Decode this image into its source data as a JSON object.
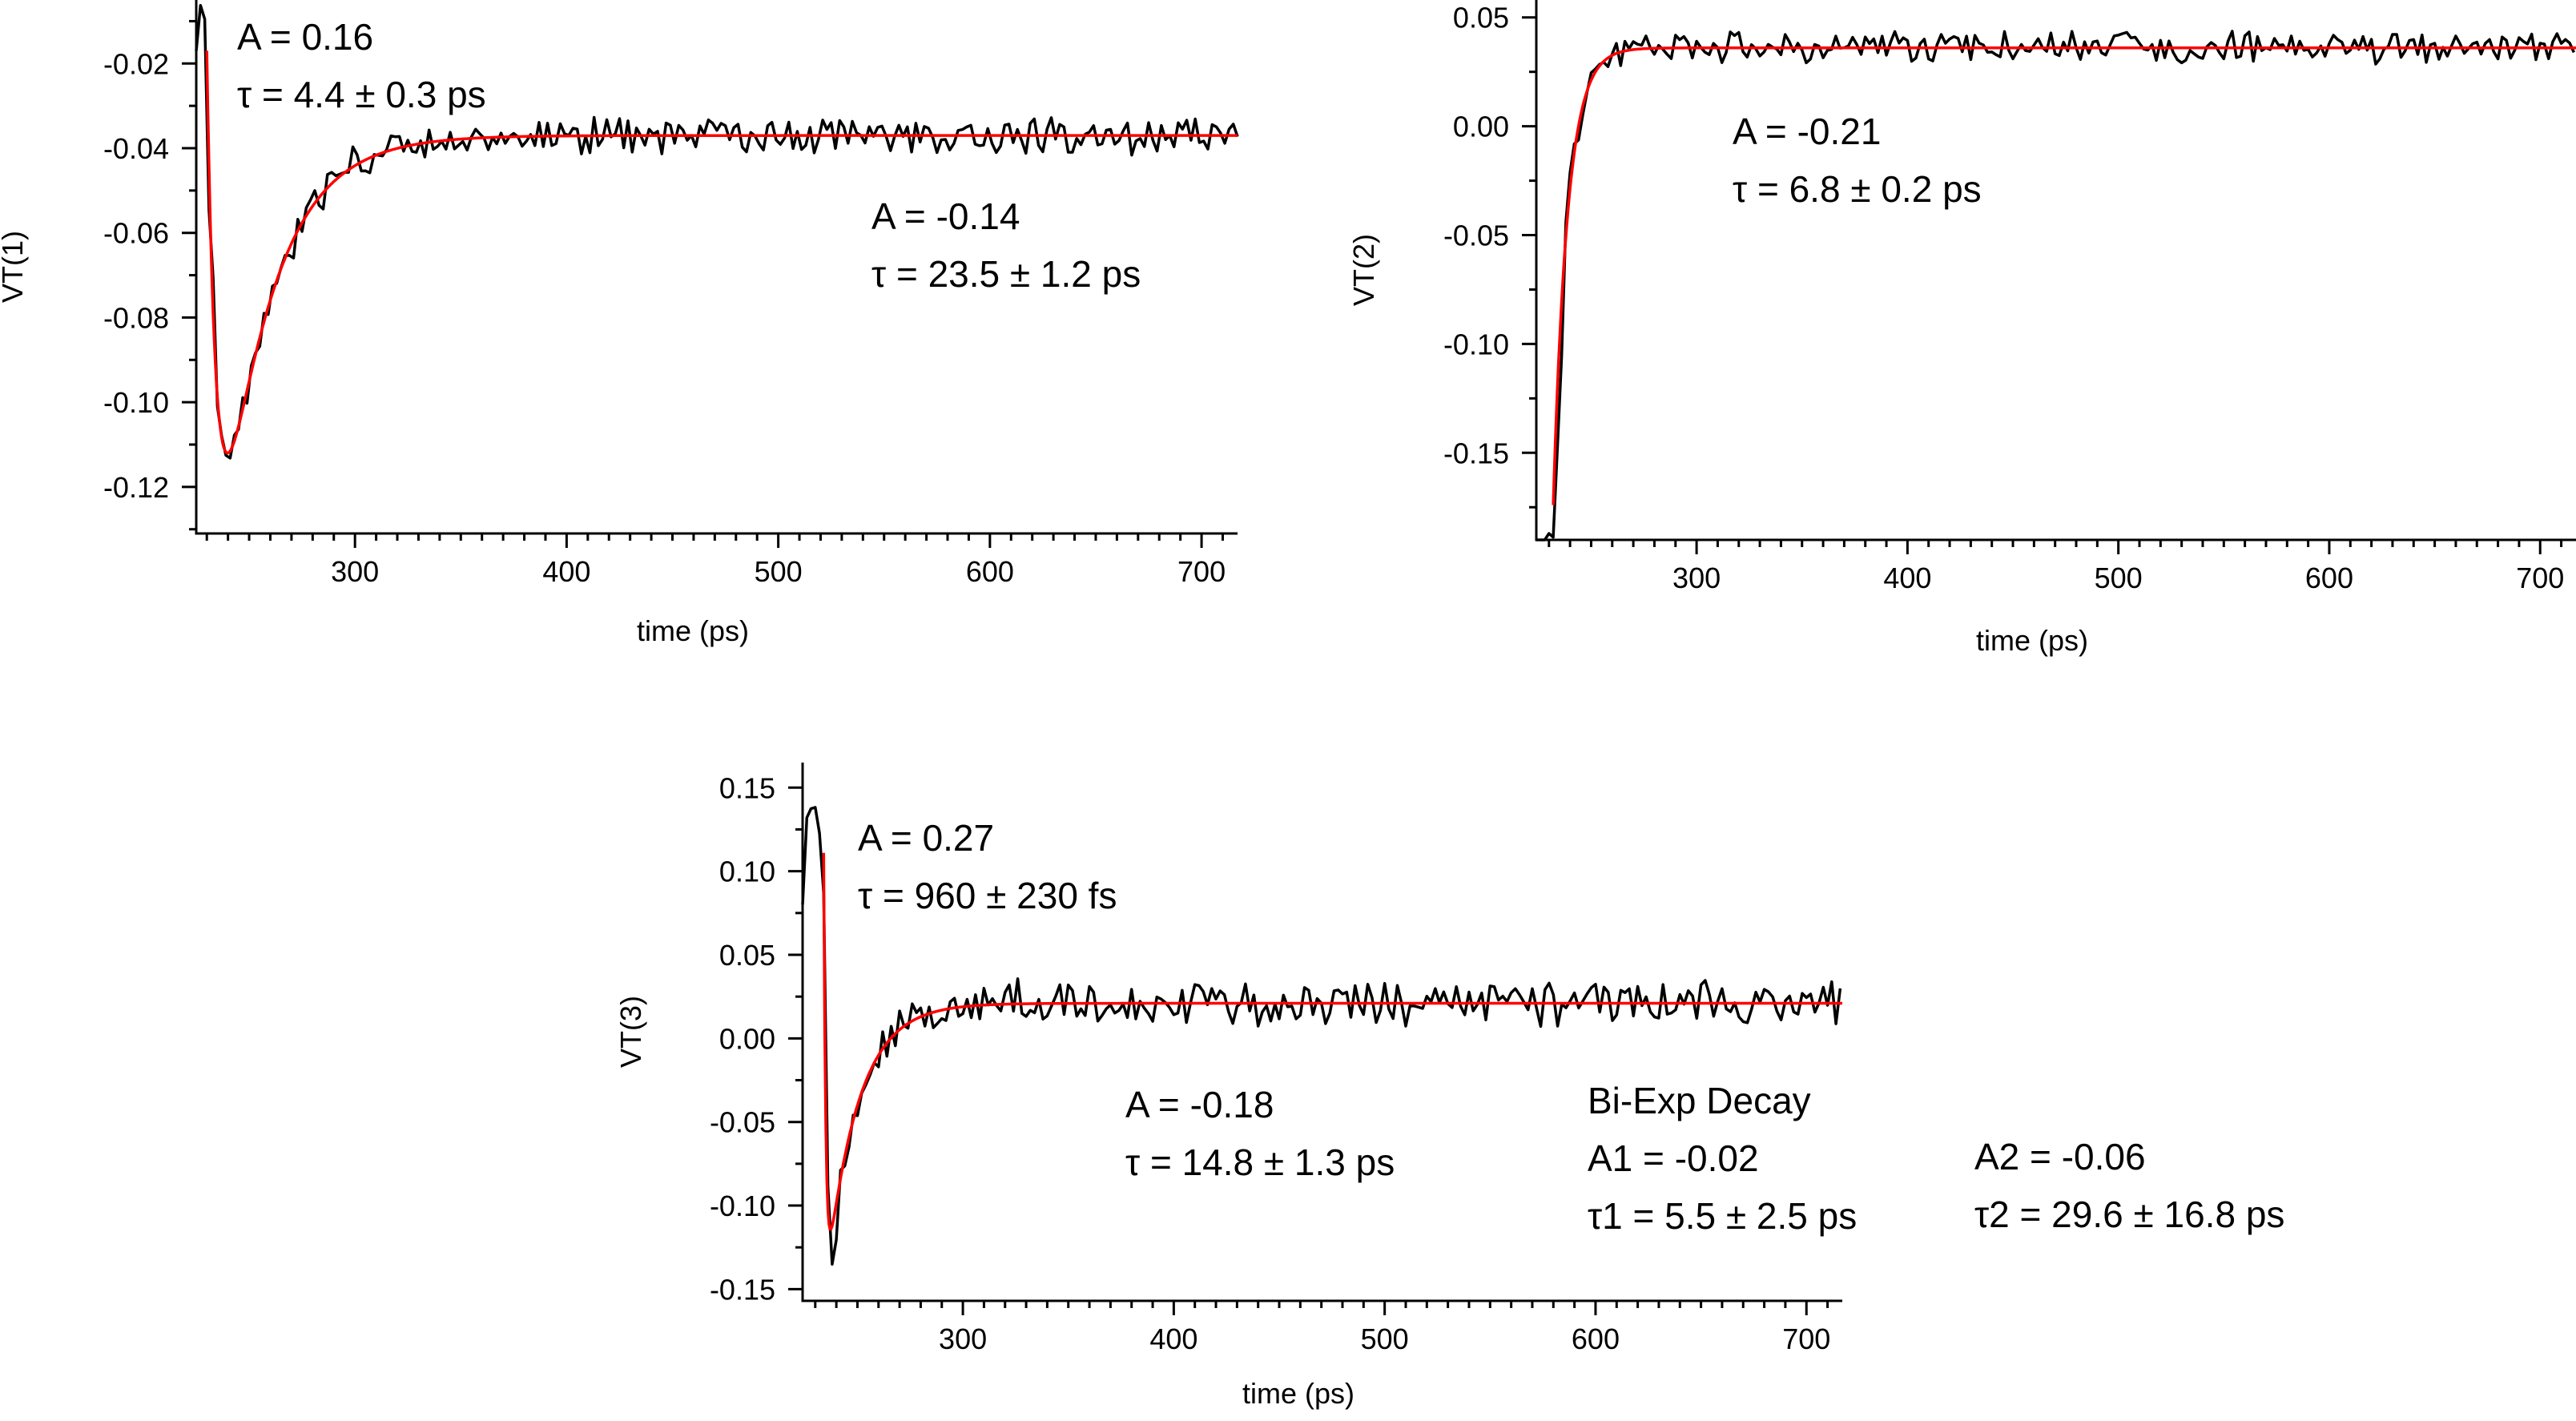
{
  "chart_data": [
    {
      "type": "line",
      "ylabel": "VT(1)",
      "xlabel": "time (ps)",
      "xlim": [
        225,
        717
      ],
      "ylim": [
        -0.131,
        -0.005
      ],
      "xticks": [
        300,
        400,
        500,
        600,
        700
      ],
      "yticks": [
        -0.02,
        -0.04,
        -0.06,
        -0.08,
        -0.1,
        -0.12
      ],
      "ytick_labels": [
        "-0.02",
        "-0.04",
        "-0.06",
        "-0.08",
        "-0.10",
        "-0.12"
      ],
      "model": {
        "t0": 230,
        "y0": -0.005,
        "a_rise": 0.16,
        "tau_rise": 4.4,
        "a_decay": -0.14,
        "tau_decay": 23.5,
        "baseline": -0.037
      },
      "noise": {
        "seed": 11,
        "amplitude": 0.0035,
        "start_amplitude": 0.012
      },
      "series": [
        {
          "values_source": "model",
          "color": "#000000"
        },
        {
          "values_source": "model-fit",
          "color": "#ff0000"
        }
      ],
      "annotations": [
        {
          "lines": [
            "A = 0.16",
            "τ = 4.4 ± 0.3 ps"
          ],
          "color": "#000000"
        },
        {
          "lines": [
            "A = -0.14",
            "τ = 23.5 ± 1.2 ps"
          ],
          "color": "#000000"
        }
      ]
    },
    {
      "type": "line",
      "ylabel": "VT(2)",
      "xlabel": "time (ps)",
      "xlim": [
        224,
        717
      ],
      "ylim": [
        -0.19,
        0.058
      ],
      "xticks": [
        300,
        400,
        500,
        600,
        700
      ],
      "yticks": [
        0.05,
        0.0,
        -0.05,
        -0.1,
        -0.15
      ],
      "ytick_labels": [
        "0.05",
        "0.00",
        "-0.05",
        "-0.10",
        "-0.15"
      ],
      "model": {
        "t0": 232,
        "y0": -0.19,
        "a_decay": -0.21,
        "tau_decay": 6.8,
        "baseline": 0.036
      },
      "noise": {
        "seed": 23,
        "amplitude": 0.006,
        "start_amplitude": 0.03
      },
      "series": [
        {
          "values_source": "model",
          "color": "#000000"
        },
        {
          "values_source": "model-fit",
          "color": "#ff0000"
        }
      ],
      "annotations": [
        {
          "lines": [
            "A = -0.21",
            "τ = 6.8 ± 0.2 ps"
          ],
          "color": "#000000"
        }
      ]
    },
    {
      "type": "line",
      "ylabel": "VT(3)",
      "xlabel": "time (ps)",
      "xlim": [
        224,
        717
      ],
      "ylim": [
        -0.157,
        0.165
      ],
      "xticks": [
        300,
        400,
        500,
        600,
        700
      ],
      "yticks": [
        0.15,
        0.1,
        0.05,
        0.0,
        -0.05,
        -0.1,
        -0.15
      ],
      "ytick_labels": [
        "0.15",
        "0.10",
        "0.05",
        "0.00",
        "-0.05",
        "-0.10",
        "-0.15"
      ],
      "model": {
        "t0": 234,
        "y0": 0.11,
        "a_rise": 0.27,
        "tau_rise": 0.96,
        "a_decay": -0.18,
        "tau_decay": 14.8,
        "baseline": 0.021
      },
      "noise": {
        "seed": 37,
        "amplitude": 0.011,
        "start_amplitude": 0.03
      },
      "series": [
        {
          "values_source": "model",
          "color": "#000000"
        },
        {
          "values_source": "model-fit",
          "color": "#ff0000"
        }
      ],
      "annotations": [
        {
          "lines": [
            "A = 0.27",
            "τ =  960 ± 230 fs"
          ],
          "color": "#000000"
        },
        {
          "lines": [
            "A = -0.18",
            "τ = 14.8 ± 1.3 ps"
          ],
          "color": "#000000"
        },
        {
          "lines": [
            "Bi-Exp Decay",
            "A1 = -0.02",
            "τ1 = 5.5 ± 2.5 ps"
          ],
          "color": "#1a1aff"
        },
        {
          "lines": [
            "A2 = -0.06",
            "τ2 = 29.6 ± 16.8 ps"
          ],
          "color": "#1a1aff"
        }
      ]
    }
  ]
}
